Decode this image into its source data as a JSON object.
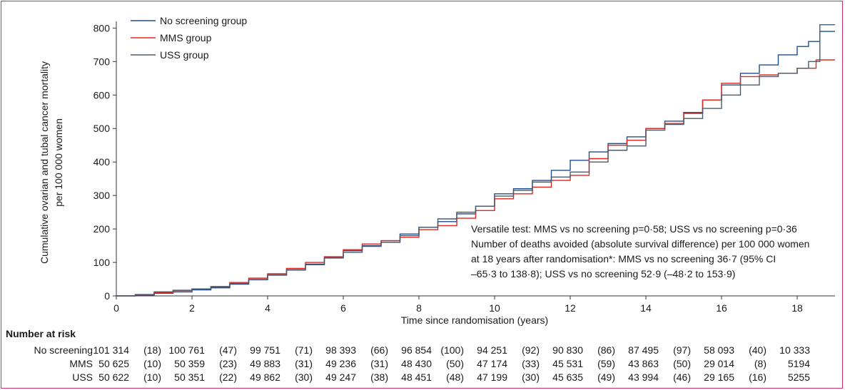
{
  "chart_data": {
    "type": "line",
    "ylabel_line1": "Cumulative ovarian and tubal cancer mortality",
    "ylabel_line2": "per 100 000 women",
    "xlabel": "Time since randomisation (years)",
    "xlim": [
      0,
      19
    ],
    "ylim": [
      0,
      820
    ],
    "xticks": [
      0,
      2,
      4,
      6,
      8,
      10,
      12,
      14,
      16,
      18
    ],
    "yticks": [
      0,
      100,
      200,
      300,
      400,
      500,
      600,
      700,
      800
    ],
    "legend_position": "top-left",
    "series": [
      {
        "name": "No screening group",
        "color": "#1f4e8c",
        "x": [
          0,
          0.5,
          1,
          1.5,
          2,
          2.5,
          3,
          3.5,
          4,
          4.5,
          5,
          5.5,
          6,
          6.5,
          7,
          7.5,
          8,
          8.5,
          9,
          9.5,
          10,
          10.5,
          11,
          11.5,
          12,
          12.5,
          13,
          13.5,
          14,
          14.5,
          15,
          15.5,
          16,
          16.5,
          17,
          17.5,
          18,
          18.3,
          18.6,
          19
        ],
        "y": [
          0,
          2,
          8,
          12,
          18,
          24,
          35,
          48,
          62,
          78,
          95,
          115,
          135,
          150,
          165,
          185,
          205,
          222,
          245,
          268,
          305,
          320,
          345,
          375,
          405,
          430,
          455,
          475,
          500,
          522,
          548,
          585,
          630,
          665,
          690,
          720,
          745,
          760,
          790,
          790
        ]
      },
      {
        "name": "MMS group",
        "color": "#e0261f",
        "x": [
          0,
          0.5,
          1,
          1.5,
          2,
          2.5,
          3,
          3.5,
          4,
          4.5,
          5,
          5.5,
          6,
          6.5,
          7,
          7.5,
          8,
          8.5,
          9,
          9.5,
          10,
          10.5,
          11,
          11.5,
          12,
          12.5,
          13,
          13.5,
          14,
          14.5,
          15,
          15.5,
          16,
          16.5,
          17,
          17.5,
          18,
          18.5,
          19
        ],
        "y": [
          0,
          3,
          10,
          16,
          21,
          28,
          40,
          53,
          66,
          82,
          100,
          117,
          138,
          155,
          165,
          175,
          198,
          210,
          232,
          255,
          290,
          305,
          325,
          345,
          360,
          410,
          450,
          465,
          500,
          515,
          545,
          585,
          635,
          655,
          660,
          665,
          680,
          705,
          705
        ]
      },
      {
        "name": "USS group",
        "color": "#4a5b6b",
        "x": [
          0,
          0.5,
          1,
          1.5,
          2,
          2.5,
          3,
          3.5,
          4,
          4.5,
          5,
          5.5,
          6,
          6.5,
          7,
          7.5,
          8,
          8.5,
          9,
          9.5,
          10,
          10.5,
          11,
          11.5,
          12,
          12.5,
          13,
          13.5,
          14,
          14.5,
          15,
          15.5,
          16,
          16.5,
          17,
          17.5,
          18,
          18.3,
          18.6,
          19
        ],
        "y": [
          0,
          4,
          12,
          17,
          21,
          27,
          37,
          49,
          63,
          77,
          93,
          113,
          130,
          148,
          160,
          180,
          205,
          230,
          250,
          268,
          298,
          315,
          340,
          355,
          370,
          400,
          435,
          448,
          495,
          512,
          530,
          560,
          600,
          630,
          655,
          665,
          680,
          700,
          810,
          810
        ]
      }
    ],
    "annotation": [
      "Versatile test: MMS vs no screening p=0·58; USS vs no screening p=0·36",
      "Number of deaths avoided (absolute survival difference) per 100 000 women",
      "at 18 years after randomisation*: MMS vs no screening 36·7 (95% CI",
      "–65·3 to 138·8); USS vs no screening 52·9 (–48·2 to 153·9)"
    ]
  },
  "risk_table": {
    "title": "Number at risk",
    "rows": [
      {
        "label": "No screening",
        "values": [
          "101 314",
          "(18)",
          "100 761",
          "(47)",
          "99 751",
          "(71)",
          "98 393",
          "(66)",
          "96 854",
          "(100)",
          "94 251",
          "(92)",
          "90 830",
          "(86)",
          "87 495",
          "(97)",
          "58 093",
          "(40)",
          "10 333"
        ]
      },
      {
        "label": "MMS",
        "values": [
          "50 625",
          "(10)",
          "50 359",
          "(23)",
          "49 883",
          "(31)",
          "49 236",
          "(31)",
          "48 430",
          "(50)",
          "47 174",
          "(33)",
          "45 531",
          "(59)",
          "43 863",
          "(50)",
          "29 014",
          "(8)",
          "5194"
        ]
      },
      {
        "label": "USS",
        "values": [
          "50 622",
          "(10)",
          "50 351",
          "(22)",
          "49 862",
          "(30)",
          "49 247",
          "(38)",
          "48 451",
          "(48)",
          "47 199",
          "(30)",
          "45 635",
          "(49)",
          "43 994",
          "(46)",
          "29 165",
          "(16)",
          "5255"
        ]
      }
    ]
  }
}
